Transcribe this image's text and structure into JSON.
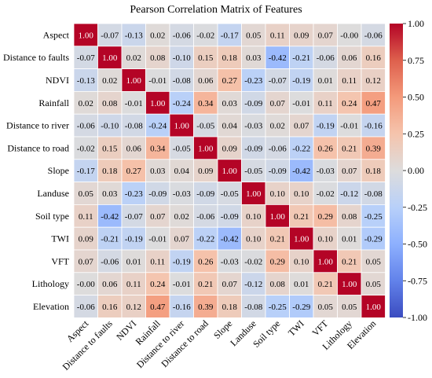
{
  "chart_data": {
    "type": "heatmap",
    "title": "Pearson Correlation Matrix of Features",
    "labels": [
      "Aspect",
      "Distance to faults",
      "NDVI",
      "Rainfall",
      "Distance to river",
      "Distance to road",
      "Slope",
      "Landuse",
      "Soil type",
      "TWI",
      "VFT",
      "Lithology",
      "Elevation"
    ],
    "matrix": [
      [
        1.0,
        -0.07,
        -0.13,
        0.02,
        -0.06,
        -0.02,
        -0.17,
        0.05,
        0.11,
        0.09,
        0.07,
        -0.0,
        -0.06
      ],
      [
        -0.07,
        1.0,
        0.02,
        0.08,
        -0.1,
        0.15,
        0.18,
        0.03,
        -0.42,
        -0.21,
        -0.06,
        0.06,
        0.16
      ],
      [
        -0.13,
        0.02,
        1.0,
        -0.01,
        -0.08,
        0.06,
        0.27,
        -0.23,
        -0.07,
        -0.19,
        0.01,
        0.11,
        0.12
      ],
      [
        0.02,
        0.08,
        -0.01,
        1.0,
        -0.24,
        0.34,
        0.03,
        -0.09,
        0.07,
        -0.01,
        0.11,
        0.24,
        0.47
      ],
      [
        -0.06,
        -0.1,
        -0.08,
        -0.24,
        1.0,
        -0.05,
        0.04,
        -0.03,
        0.02,
        0.07,
        -0.19,
        -0.01,
        -0.16
      ],
      [
        -0.02,
        0.15,
        0.06,
        0.34,
        -0.05,
        1.0,
        0.09,
        -0.09,
        -0.06,
        -0.22,
        0.26,
        0.21,
        0.39
      ],
      [
        -0.17,
        0.18,
        0.27,
        0.03,
        0.04,
        0.09,
        1.0,
        -0.05,
        -0.09,
        -0.42,
        -0.03,
        0.07,
        0.18
      ],
      [
        0.05,
        0.03,
        -0.23,
        -0.09,
        -0.03,
        -0.09,
        -0.05,
        1.0,
        0.1,
        0.1,
        -0.02,
        -0.12,
        -0.08
      ],
      [
        0.11,
        -0.42,
        -0.07,
        0.07,
        0.02,
        -0.06,
        -0.09,
        0.1,
        1.0,
        0.21,
        0.29,
        0.08,
        -0.25
      ],
      [
        0.09,
        -0.21,
        -0.19,
        -0.01,
        0.07,
        -0.22,
        -0.42,
        0.1,
        0.21,
        1.0,
        0.1,
        0.01,
        -0.29
      ],
      [
        0.07,
        -0.06,
        0.01,
        0.11,
        -0.19,
        0.26,
        -0.03,
        -0.02,
        0.29,
        0.1,
        1.0,
        0.21,
        0.05
      ],
      [
        -0.0,
        0.06,
        0.11,
        0.24,
        -0.01,
        0.21,
        0.07,
        -0.12,
        0.08,
        0.01,
        0.21,
        1.0,
        0.05
      ],
      [
        -0.06,
        0.16,
        0.12,
        0.47,
        -0.16,
        0.39,
        0.18,
        -0.08,
        -0.25,
        -0.29,
        0.05,
        0.05,
        1.0
      ]
    ],
    "value_range": [
      -1.0,
      1.0
    ],
    "colormap": "coolwarm",
    "colorbar_ticks": [
      1.0,
      0.75,
      0.5,
      0.25,
      0.0,
      -0.25,
      -0.5,
      -0.75,
      -1.0
    ],
    "colors": {
      "low": "#3b4cc0",
      "mid": "#dddcdc",
      "high": "#b40426"
    },
    "xlabel": "",
    "ylabel": "",
    "grid": false,
    "legend": "colorbar-right"
  }
}
